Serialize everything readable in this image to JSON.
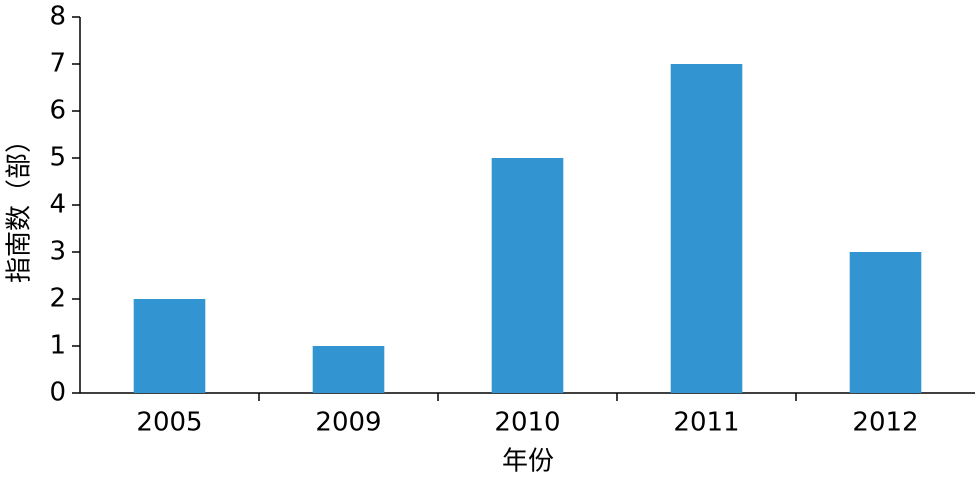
{
  "chart_data": {
    "type": "bar",
    "x_label": "年份",
    "y_label": "指南数（部）",
    "categories": [
      "2005",
      "2009",
      "2010",
      "2011",
      "2012"
    ],
    "values": [
      2,
      1,
      5,
      7,
      3
    ],
    "color": "#3294d0",
    "ylim": [
      0,
      8
    ],
    "yticks": [
      0,
      1,
      2,
      3,
      4,
      5,
      6,
      7,
      8
    ],
    "grid": false
  }
}
